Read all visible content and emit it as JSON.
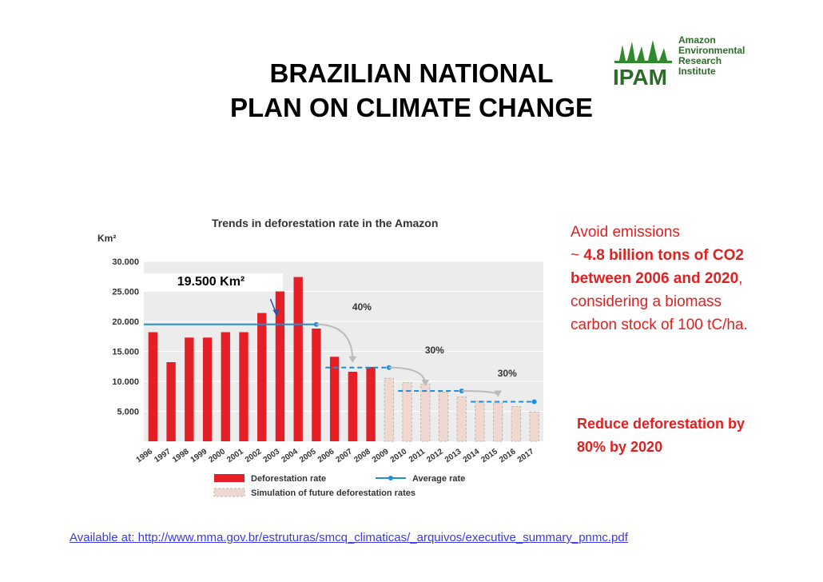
{
  "slide": {
    "title_line1": "BRAZILIAN NATIONAL",
    "title_line2": "PLAN ON CLIMATE CHANGE",
    "source": "Available at: http://www.mma.gov.br/estruturas/smcq_climaticas/_arquivos/executive_summary_pnmc.pdf"
  },
  "logo": {
    "abbr": "IPAM",
    "line1": "Amazon",
    "line2": "Environmental",
    "line3": "Research",
    "line4": "Institute"
  },
  "side_text": {
    "p1": "Avoid emissions",
    "p2": "~ ",
    "p3": "4.8 billion tons of CO2 between 2006 and 2020",
    "p4": ", considering a biomass carbon stock of 100 tC/ha.",
    "target": "Reduce deforestation by 80% by 2020"
  },
  "annotation": "19.500 Km²",
  "colors": {
    "bar": "#e41f26",
    "sim": "#f0d8d0",
    "avg": "#1e8fd8",
    "text_red": "#e22020"
  },
  "chart_data": {
    "type": "bar",
    "title": "Trends in deforestation rate in the Amazon",
    "ylabel": "Km²",
    "ylim": [
      0,
      30000
    ],
    "yticks": [
      "5.000",
      "10.000",
      "15.000",
      "20.000",
      "25.000",
      "30.000"
    ],
    "categories": [
      "1996",
      "1997",
      "1998",
      "1999",
      "2000",
      "2001",
      "2002",
      "2003",
      "2004",
      "2005",
      "2006",
      "2007",
      "2008",
      "2009",
      "2010",
      "2011",
      "2012",
      "2013",
      "2014",
      "2015",
      "2016",
      "2017"
    ],
    "series": [
      {
        "name": "Deforestation rate",
        "values": [
          18200,
          13200,
          17300,
          17300,
          18200,
          18200,
          21400,
          25000,
          27400,
          18800,
          14100,
          11600,
          12400,
          null,
          null,
          null,
          null,
          null,
          null,
          null,
          null,
          null
        ]
      },
      {
        "name": "Simulation of future deforestation rates",
        "values": [
          null,
          null,
          null,
          null,
          null,
          null,
          null,
          null,
          null,
          null,
          null,
          null,
          null,
          10500,
          9800,
          9500,
          8200,
          7400,
          6700,
          6400,
          5800,
          4900
        ]
      }
    ],
    "average_rate": [
      {
        "from": "1996",
        "to": "2005",
        "value": 19500
      },
      {
        "from": "2006",
        "to": "2009",
        "value": 12300
      },
      {
        "from": "2010",
        "to": "2013",
        "value": 8400
      },
      {
        "from": "2014",
        "to": "2017",
        "value": 6600
      }
    ],
    "reductions": [
      "40%",
      "30%",
      "30%"
    ],
    "legend": [
      "Deforestation rate",
      "Average rate",
      "Simulation of future deforestation rates"
    ]
  }
}
